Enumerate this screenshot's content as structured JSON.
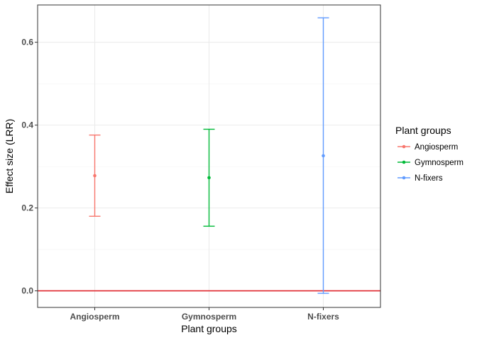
{
  "chart_data": {
    "type": "scatter",
    "xlabel": "Plant groups",
    "ylabel": "Effect size (LRR)",
    "ylim": [
      -0.04,
      0.69
    ],
    "yticks": [
      "0.0",
      "0.2",
      "0.4",
      "0.6"
    ],
    "ytick_values": [
      0,
      0.2,
      0.4,
      0.6
    ],
    "categories": [
      "Angiosperm",
      "Gymnosperm",
      "N-fixers"
    ],
    "series": [
      {
        "name": "Angiosperm",
        "color": "#F8766D",
        "x": "Angiosperm",
        "y": 0.278,
        "ymin": 0.18,
        "ymax": 0.376
      },
      {
        "name": "Gymnosperm",
        "color": "#00BA38",
        "x": "Gymnosperm",
        "y": 0.273,
        "ymin": 0.156,
        "ymax": 0.39
      },
      {
        "name": "N-fixers",
        "color": "#619CFF",
        "x": "N-fixers",
        "y": 0.326,
        "ymin": -0.006,
        "ymax": 0.659
      }
    ],
    "reference_line": {
      "y": 0,
      "color": "#E0262C"
    },
    "grid": true,
    "legend": {
      "title": "Plant groups",
      "position": "right"
    }
  }
}
